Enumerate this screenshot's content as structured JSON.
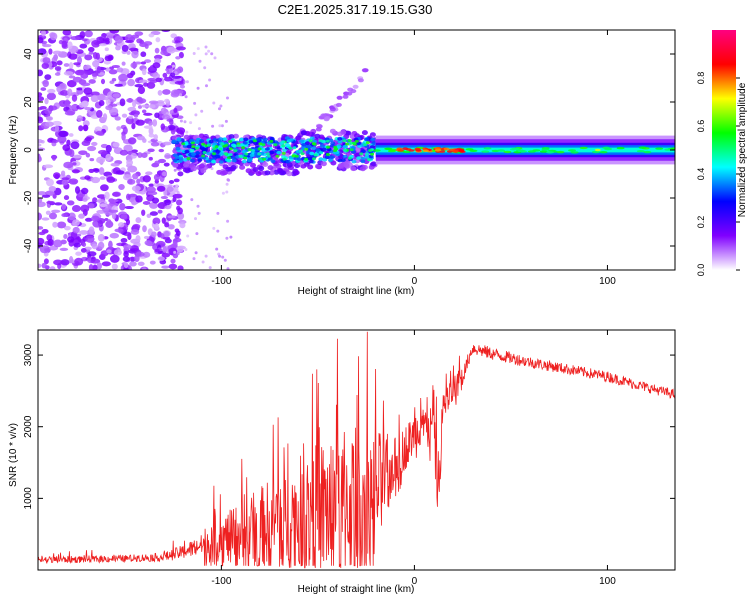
{
  "title": "C2E1.2025.317.19.15.G30",
  "chart_data": [
    {
      "type": "heatmap",
      "name": "spectrogram",
      "xlabel": "Height of straight line (km)",
      "ylabel": "Frequency (Hz)",
      "xlim": [
        -195,
        135
      ],
      "ylim": [
        -50,
        50
      ],
      "x_ticks": [
        -100,
        0,
        100
      ],
      "y_ticks": [
        -40,
        -20,
        0,
        20,
        40
      ],
      "x_tick_labels": [
        "-100",
        "0",
        "100"
      ],
      "y_tick_labels": [
        "-40",
        "-20",
        "0",
        "20",
        "40"
      ],
      "colorbar": {
        "label": "Normalized spectral amplitude",
        "range": [
          0,
          1
        ],
        "ticks": [
          0.0,
          0.2,
          0.4,
          0.6,
          0.8
        ],
        "tick_labels": [
          "0.0",
          "0.2",
          "0.4",
          "0.6",
          "0.8"
        ],
        "colormap": [
          "#ffffff",
          "#8000ff",
          "#0000ff",
          "#00ffff",
          "#00ff00",
          "#ffff00",
          "#ff0000",
          "#ff0080"
        ]
      },
      "features": [
        {
          "description": "broadband noise",
          "x_range": [
            -195,
            -120
          ],
          "freq_range": [
            -50,
            50
          ],
          "amplitude": 0.1
        },
        {
          "description": "dispersed carrier",
          "x_range": [
            -125,
            -20
          ],
          "freq_range": [
            -8,
            8
          ],
          "amplitude": 0.3
        },
        {
          "description": "weak upper component",
          "x_range": [
            -50,
            -25
          ],
          "freq_range": [
            10,
            32
          ],
          "amplitude": 0.08
        },
        {
          "description": "stable carrier",
          "x_range": [
            -20,
            135
          ],
          "freq_center": 0,
          "amplitude": 0.45
        },
        {
          "description": "peak carrier",
          "x_range": [
            -10,
            25
          ],
          "freq_center": 0,
          "amplitude": 0.9
        }
      ]
    },
    {
      "type": "line",
      "name": "snr",
      "xlabel": "Height of straight line (km)",
      "ylabel": "SNR (10 * v/v)",
      "xlim": [
        -195,
        135
      ],
      "ylim": [
        0,
        3350
      ],
      "x_ticks": [
        -100,
        0,
        100
      ],
      "y_ticks": [
        1000,
        2000,
        3000
      ],
      "x_tick_labels": [
        "-100",
        "0",
        "100"
      ],
      "y_tick_labels": [
        "1000",
        "2000",
        "3000"
      ],
      "color": "#ee2020",
      "series": [
        {
          "name": "SNR",
          "x": [
            -195,
            -170,
            -150,
            -130,
            -120,
            -110,
            -100,
            -90,
            -80,
            -70,
            -60,
            -50,
            -40,
            -30,
            -20,
            -10,
            0,
            5,
            10,
            12,
            15,
            20,
            25,
            30,
            40,
            60,
            80,
            100,
            120,
            135
          ],
          "y": [
            140,
            150,
            160,
            180,
            250,
            350,
            420,
            500,
            600,
            700,
            780,
            830,
            900,
            980,
            1120,
            1500,
            1900,
            2000,
            1950,
            1100,
            2300,
            2500,
            2700,
            3100,
            3020,
            2900,
            2800,
            2700,
            2550,
            2450
          ],
          "noise": [
            100,
            100,
            100,
            120,
            200,
            300,
            420,
            560,
            700,
            850,
            1000,
            1200,
            1350,
            1300,
            1050,
            450,
            350,
            380,
            420,
            600,
            280,
            250,
            220,
            190,
            180,
            160,
            150,
            150,
            140,
            140
          ]
        }
      ]
    }
  ]
}
